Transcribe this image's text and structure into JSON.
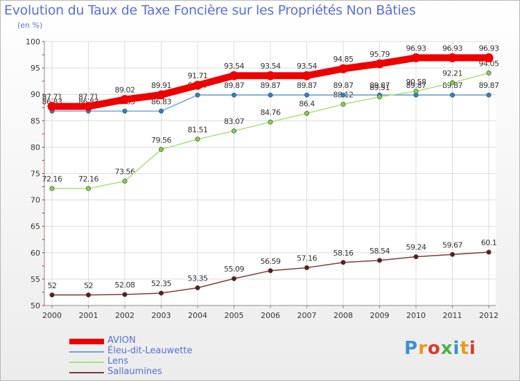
{
  "header": {
    "title": "Evolution du Taux de Taxe Foncière sur les Propriétés Non Bâties",
    "subtitle": "(en %)"
  },
  "logo": {
    "text": "Proxiti",
    "colors": [
      "#3a8fd4",
      "#e89b1a",
      "#d63b2f",
      "#4bb04b",
      "#3a8fd4",
      "#e89b1a",
      "#d63b2f"
    ]
  },
  "chart_data": {
    "type": "line",
    "title": "Evolution du Taux de Taxe Foncière sur les Propriétés Non Bâties",
    "ylabel": "(en %)",
    "xlabel": "",
    "x": [
      "2000",
      "2001",
      "2002",
      "2003",
      "2004",
      "2005",
      "2006",
      "2007",
      "2008",
      "2009",
      "2010",
      "2011",
      "2012"
    ],
    "ylim": [
      50,
      100
    ],
    "yticks": [
      50,
      55,
      60,
      65,
      70,
      75,
      80,
      85,
      90,
      95,
      100
    ],
    "grid": true,
    "legend_position": "bottom-left",
    "series": [
      {
        "name": "AVION",
        "color": "#ee0000",
        "emphasis": true,
        "values": [
          87.71,
          87.71,
          89.02,
          89.91,
          91.71,
          93.54,
          93.54,
          93.54,
          94.85,
          95.79,
          96.93,
          96.93,
          96.93
        ],
        "labels": [
          "87.71",
          "87.71",
          "89.02",
          "89.91",
          "91.71",
          "93.54",
          "93.54",
          "93.54",
          "94.85",
          "95.79",
          "96.93",
          "96.93",
          "96.93"
        ]
      },
      {
        "name": "Éleu-dit-Leauwette",
        "color": "#6ea6d8",
        "marker": "#2f7fc8",
        "values": [
          86.83,
          86.83,
          86.83,
          86.83,
          89.87,
          89.87,
          89.87,
          89.87,
          89.87,
          89.87,
          89.87,
          89.87,
          89.87
        ],
        "labels": [
          "86.83",
          "86.83",
          "86.83",
          "86.83",
          "89.87",
          "89.87",
          "89.87",
          "89.87",
          "89.87",
          "89.87",
          "89.87",
          "89.87",
          "89.87"
        ]
      },
      {
        "name": "Lens",
        "color": "#a8e27a",
        "marker": "#7fd04a",
        "values": [
          72.16,
          72.16,
          73.56,
          79.56,
          81.51,
          83.07,
          84.76,
          86.4,
          88.12,
          89.51,
          90.58,
          92.21,
          94.05
        ],
        "labels": [
          "72.16",
          "72.16",
          "73.56",
          "79.56",
          "81.51",
          "83.07",
          "84.76",
          "86.4",
          "88.12",
          "89.51",
          "90.58",
          "92.21",
          "94.05"
        ]
      },
      {
        "name": "Sallaumines",
        "color": "#7a3b3b",
        "marker": "#5a1e1e",
        "values": [
          52,
          52,
          52.08,
          52.35,
          53.35,
          55.09,
          56.59,
          57.16,
          58.16,
          58.54,
          59.24,
          59.67,
          60.1
        ],
        "labels": [
          "52",
          "52",
          "52.08",
          "52.35",
          "53.35",
          "55.09",
          "56.59",
          "57.16",
          "58.16",
          "58.54",
          "59.24",
          "59.67",
          "60.1"
        ]
      }
    ]
  }
}
